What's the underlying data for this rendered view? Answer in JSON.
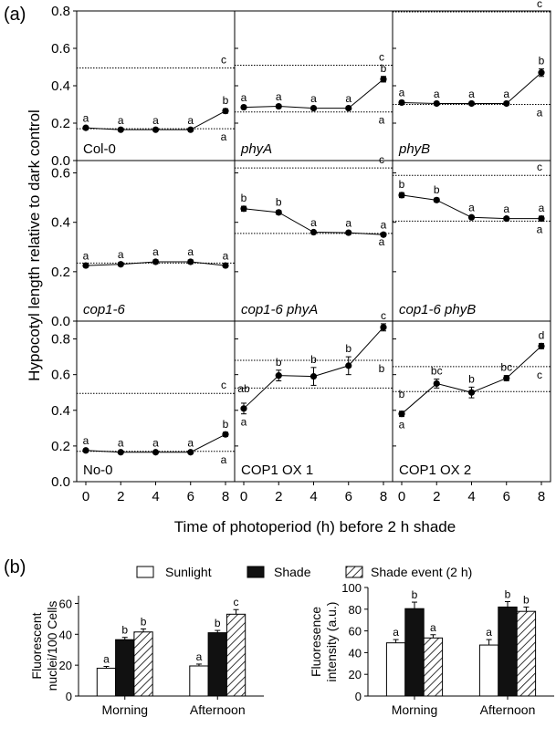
{
  "figure": {
    "panel_a_letter": "(a)",
    "panel_b_letter": "(b)",
    "a_ylabel": "Hypocotyl length relative to dark control",
    "a_xlabel": "Time of photoperiod (h) before 2 h shade",
    "b_legend": [
      "Sunlight",
      "Shade",
      "Shade event (2 h)"
    ]
  },
  "colors": {
    "sunlight": "#ffffff",
    "shade": "#111111",
    "shade_event": "hatched",
    "line": "#000000",
    "dotted": "#000000"
  },
  "chart_data": [
    {
      "type": "line",
      "panel": "Col-0",
      "italic": false,
      "row": 0,
      "col": 0,
      "x": [
        0,
        2,
        4,
        6,
        8
      ],
      "y": [
        0.175,
        0.165,
        0.165,
        0.165,
        0.265
      ],
      "err": [
        0.008,
        0.006,
        0.006,
        0.006,
        0.012
      ],
      "letters": [
        "a",
        "a",
        "a",
        "a",
        "b"
      ],
      "refs": [
        {
          "y": 0.495,
          "letter": "c",
          "pos": "above"
        },
        {
          "y": 0.17,
          "letter": "a",
          "pos": "below"
        }
      ],
      "ylim": [
        0,
        0.8
      ],
      "yticks": [
        0.0,
        0.2,
        0.4,
        0.6,
        0.8
      ],
      "xticks": [
        0,
        2,
        4,
        6,
        8
      ]
    },
    {
      "type": "line",
      "panel": "phyA",
      "italic": true,
      "row": 0,
      "col": 1,
      "x": [
        0,
        2,
        4,
        6,
        8
      ],
      "y": [
        0.285,
        0.29,
        0.28,
        0.28,
        0.435
      ],
      "err": [
        0.008,
        0.008,
        0.008,
        0.008,
        0.015
      ],
      "letters": [
        "a",
        "a",
        "a",
        "a",
        "b"
      ],
      "refs": [
        {
          "y": 0.51,
          "letter": "c",
          "pos": "above"
        },
        {
          "y": 0.26,
          "letter": "a",
          "pos": "below"
        }
      ],
      "ylim": [
        0,
        0.8
      ],
      "yticks": [
        0.0,
        0.2,
        0.4,
        0.6,
        0.8
      ],
      "xticks": [
        0,
        2,
        4,
        6,
        8
      ]
    },
    {
      "type": "line",
      "panel": "phyB",
      "italic": true,
      "row": 0,
      "col": 2,
      "x": [
        0,
        2,
        4,
        6,
        8
      ],
      "y": [
        0.31,
        0.305,
        0.305,
        0.305,
        0.47
      ],
      "err": [
        0.01,
        0.008,
        0.008,
        0.008,
        0.02
      ],
      "letters": [
        "a",
        "a",
        "a",
        "a",
        "b"
      ],
      "refs": [
        {
          "y": 0.795,
          "letter": "c",
          "pos": "above"
        },
        {
          "y": 0.3,
          "letter": "a",
          "pos": "below"
        }
      ],
      "ylim": [
        0,
        0.8
      ],
      "yticks": [
        0.0,
        0.2,
        0.4,
        0.6,
        0.8
      ],
      "xticks": [
        0,
        2,
        4,
        6,
        8
      ]
    },
    {
      "type": "line",
      "panel": "cop1-6",
      "italic": true,
      "row": 1,
      "col": 0,
      "x": [
        0,
        2,
        4,
        6,
        8
      ],
      "y": [
        0.225,
        0.23,
        0.24,
        0.24,
        0.225
      ],
      "err": [
        0.006,
        0.006,
        0.008,
        0.008,
        0.006
      ],
      "letters": [
        "a",
        "a",
        "a",
        "a",
        "a"
      ],
      "refs": [
        {
          "y": 0.235,
          "letter": "",
          "pos": "above"
        }
      ],
      "ylim": [
        0,
        0.65
      ],
      "yticks": [
        0.0,
        0.2,
        0.4,
        0.6
      ],
      "xticks": [
        0,
        2,
        4,
        6,
        8
      ]
    },
    {
      "type": "line",
      "panel": "cop1-6 phyA",
      "italic": true,
      "row": 1,
      "col": 1,
      "x": [
        0,
        2,
        4,
        6,
        8
      ],
      "y": [
        0.455,
        0.44,
        0.36,
        0.358,
        0.35
      ],
      "err": [
        0.01,
        0.008,
        0.006,
        0.006,
        0.006
      ],
      "letters": [
        "b",
        "b",
        "a",
        "a",
        "a"
      ],
      "refs": [
        {
          "y": 0.62,
          "letter": "c",
          "pos": "above"
        },
        {
          "y": 0.355,
          "letter": "a",
          "pos": "below"
        }
      ],
      "ylim": [
        0,
        0.65
      ],
      "yticks": [
        0.0,
        0.2,
        0.4,
        0.6
      ],
      "xticks": [
        0,
        2,
        4,
        6,
        8
      ]
    },
    {
      "type": "line",
      "panel": "cop1-6 phyB",
      "italic": true,
      "row": 1,
      "col": 2,
      "x": [
        0,
        2,
        4,
        6,
        8
      ],
      "y": [
        0.51,
        0.49,
        0.42,
        0.415,
        0.415
      ],
      "err": [
        0.01,
        0.008,
        0.006,
        0.006,
        0.01
      ],
      "letters": [
        "b",
        "b",
        "a",
        "a",
        "a"
      ],
      "refs": [
        {
          "y": 0.59,
          "letter": "c",
          "pos": "above"
        },
        {
          "y": 0.405,
          "letter": "a",
          "pos": "below"
        }
      ],
      "ylim": [
        0,
        0.65
      ],
      "yticks": [
        0.0,
        0.2,
        0.4,
        0.6
      ],
      "xticks": [
        0,
        2,
        4,
        6,
        8
      ]
    },
    {
      "type": "line",
      "panel": "No-0",
      "italic": false,
      "row": 2,
      "col": 0,
      "x": [
        0,
        2,
        4,
        6,
        8
      ],
      "y": [
        0.175,
        0.165,
        0.165,
        0.165,
        0.265
      ],
      "err": [
        0.008,
        0.006,
        0.006,
        0.006,
        0.012
      ],
      "letters": [
        "a",
        "a",
        "a",
        "a",
        "b"
      ],
      "refs": [
        {
          "y": 0.495,
          "letter": "c",
          "pos": "above"
        },
        {
          "y": 0.17,
          "letter": "a",
          "pos": "below"
        }
      ],
      "ylim": [
        0,
        0.9
      ],
      "yticks": [
        0.0,
        0.2,
        0.4,
        0.6,
        0.8
      ],
      "xticks": [
        0,
        2,
        4,
        6,
        8
      ]
    },
    {
      "type": "line",
      "panel": "COP1 OX 1",
      "italic": false,
      "row": 2,
      "col": 1,
      "x": [
        0,
        2,
        4,
        6,
        8
      ],
      "y": [
        0.41,
        0.595,
        0.59,
        0.65,
        0.865
      ],
      "err": [
        0.03,
        0.03,
        0.05,
        0.05,
        0.02
      ],
      "letters": [
        "a",
        "b",
        "b",
        "b",
        "c"
      ],
      "letter_pos": [
        "below",
        "above",
        "above",
        "above",
        "above"
      ],
      "extra_labels": [
        {
          "x": 0,
          "y": 0.5,
          "text": "ab"
        }
      ],
      "refs": [
        {
          "y": 0.68,
          "letter": "b",
          "pos": "below"
        },
        {
          "y": 0.525,
          "letter": "",
          "pos": "below"
        }
      ],
      "ylim": [
        0,
        0.9
      ],
      "yticks": [
        0.0,
        0.2,
        0.4,
        0.6,
        0.8
      ],
      "xticks": [
        0,
        2,
        4,
        6,
        8
      ]
    },
    {
      "type": "line",
      "panel": "COP1 OX 2",
      "italic": false,
      "row": 2,
      "col": 2,
      "x": [
        0,
        2,
        4,
        6,
        8
      ],
      "y": [
        0.38,
        0.55,
        0.5,
        0.58,
        0.76
      ],
      "err": [
        0.015,
        0.025,
        0.03,
        0.015,
        0.015
      ],
      "letters": [
        "a",
        "bc",
        "b",
        "bc",
        "d"
      ],
      "letter_pos": [
        "below",
        "above",
        "above",
        "above",
        "above"
      ],
      "extra_labels": [
        {
          "x": 0,
          "y": 0.47,
          "text": "b"
        }
      ],
      "refs": [
        {
          "y": 0.645,
          "letter": "c",
          "pos": "below"
        },
        {
          "y": 0.505,
          "letter": "",
          "pos": "below"
        }
      ],
      "ylim": [
        0,
        0.9
      ],
      "yticks": [
        0.0,
        0.2,
        0.4,
        0.6,
        0.8
      ],
      "xticks": [
        0,
        2,
        4,
        6,
        8
      ]
    },
    {
      "type": "bar",
      "panel": "b-left",
      "ylabel": [
        "Fluorescent",
        "nuclei/100 Cells"
      ],
      "categories": [
        "Morning",
        "Afternoon"
      ],
      "series": [
        {
          "name": "Sunlight",
          "values": [
            18,
            19.5
          ],
          "err": [
            1.2,
            1.2
          ],
          "letters": [
            "a",
            "a"
          ]
        },
        {
          "name": "Shade",
          "values": [
            36.5,
            41
          ],
          "err": [
            1.5,
            1.5
          ],
          "letters": [
            "b",
            "b"
          ]
        },
        {
          "name": "Shade event (2 h)",
          "values": [
            41.5,
            53
          ],
          "err": [
            2,
            3
          ],
          "letters": [
            "b",
            "c"
          ]
        }
      ],
      "ylim": [
        0,
        65
      ],
      "yticks": [
        0,
        20,
        40,
        60
      ]
    },
    {
      "type": "bar",
      "panel": "b-right",
      "ylabel": [
        "Fluoresence",
        "intensity (a.u.)"
      ],
      "categories": [
        "Morning",
        "Afternoon"
      ],
      "series": [
        {
          "name": "Sunlight",
          "values": [
            49,
            47
          ],
          "err": [
            3,
            5
          ],
          "letters": [
            "a",
            "a"
          ]
        },
        {
          "name": "Shade",
          "values": [
            80.5,
            82
          ],
          "err": [
            6,
            5
          ],
          "letters": [
            "b",
            "b"
          ]
        },
        {
          "name": "Shade event (2 h)",
          "values": [
            53.5,
            78
          ],
          "err": [
            3,
            4
          ],
          "letters": [
            "a",
            "b"
          ]
        }
      ],
      "ylim": [
        0,
        100
      ],
      "yticks": [
        0,
        20,
        40,
        60,
        80,
        100
      ]
    }
  ]
}
